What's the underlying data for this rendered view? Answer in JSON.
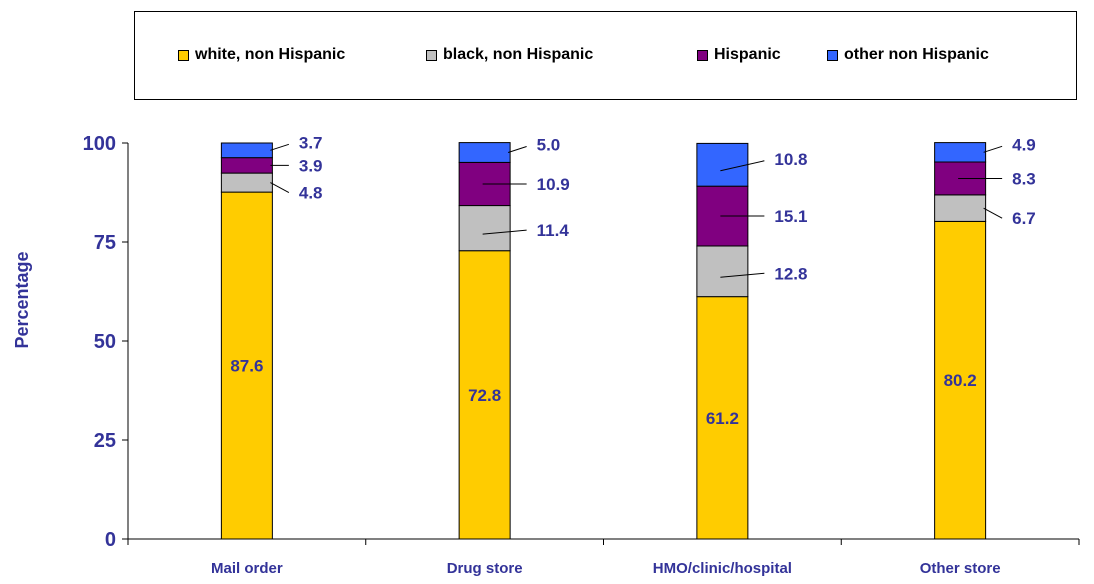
{
  "chart_data": {
    "type": "bar",
    "stacked": true,
    "categories": [
      "Mail order",
      "Drug store",
      "HMO/clinic/hospital",
      "Other store"
    ],
    "series": [
      {
        "name": "white, non Hispanic",
        "color": "#FFCC00",
        "values": [
          87.6,
          72.8,
          61.2,
          80.2
        ]
      },
      {
        "name": "black, non Hispanic",
        "color": "#C0C0C0",
        "values": [
          4.8,
          11.4,
          12.8,
          6.7
        ]
      },
      {
        "name": "Hispanic",
        "color": "#800080",
        "values": [
          3.9,
          10.9,
          15.1,
          8.3
        ]
      },
      {
        "name": "other non Hispanic",
        "color": "#3366FF",
        "values": [
          3.7,
          5.0,
          10.8,
          4.9
        ]
      }
    ],
    "data_labels": [
      [
        "87.6",
        "4.8",
        "3.9",
        "3.7"
      ],
      [
        "72.8",
        "11.4",
        "10.9",
        "5.0"
      ],
      [
        "61.2",
        "12.8",
        "15.1",
        "10.8"
      ],
      [
        "80.2",
        "6.7",
        "8.3",
        "4.9"
      ]
    ],
    "ylabel": "Percentage",
    "xlabel": "",
    "ylim": [
      0,
      100
    ],
    "yticks": [
      "0",
      "25",
      "50",
      "75",
      "100"
    ],
    "legend_position": "top",
    "grid": false
  }
}
